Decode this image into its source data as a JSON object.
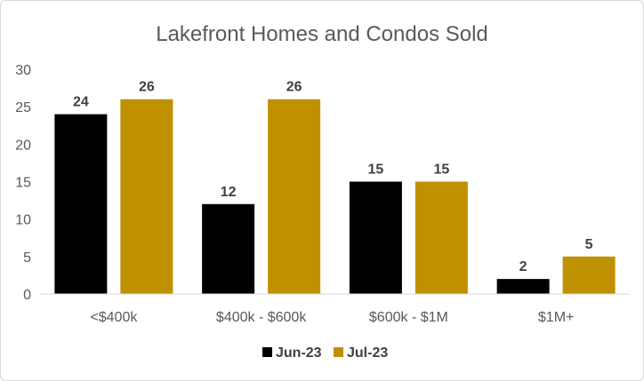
{
  "chart_data": {
    "type": "bar",
    "title": "Lakefront Homes and Condos Sold",
    "categories": [
      "<$400k",
      "$400k - $600k",
      "$600k - $1M",
      "$1M+"
    ],
    "series": [
      {
        "name": "Jun-23",
        "color": "#000000",
        "values": [
          24,
          12,
          15,
          2
        ]
      },
      {
        "name": "Jul-23",
        "color": "#bf9000",
        "values": [
          26,
          26,
          15,
          5
        ]
      }
    ],
    "ylim": [
      0,
      30
    ],
    "yticks": [
      0,
      5,
      10,
      15,
      20,
      25,
      30
    ],
    "grid": false,
    "legend": "bottom-center",
    "data_labels": true
  }
}
